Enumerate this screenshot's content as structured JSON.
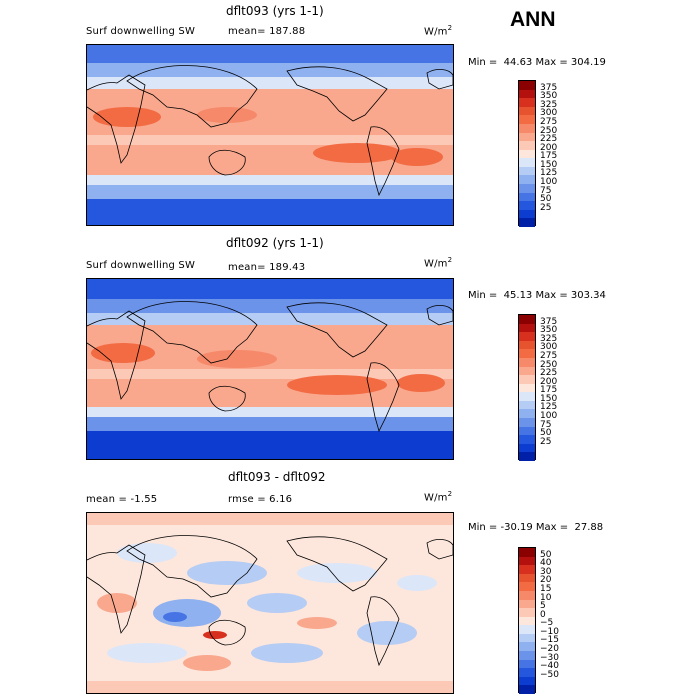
{
  "season": "ANN",
  "panels": [
    {
      "title": "dflt093 (yrs 1-1)",
      "variable": "Surf downwelling SW",
      "stat1": "mean= 187.88",
      "stat2": "",
      "unit": "W/m",
      "unit_sup": "2",
      "minmax": "Min =  44.63 Max = 304.19",
      "type": "field"
    },
    {
      "title": "dflt092 (yrs 1-1)",
      "variable": "Surf downwelling SW",
      "stat1": "mean= 189.43",
      "stat2": "",
      "unit": "W/m",
      "unit_sup": "2",
      "minmax": "Min =  45.13 Max = 303.34",
      "type": "field"
    },
    {
      "title": "dflt093 - dflt092",
      "variable": "",
      "stat1": "mean =  -1.55",
      "stat2": "rmse =   6.16",
      "unit": "W/m",
      "unit_sup": "2",
      "minmax": "Min = -30.19 Max =  27.88",
      "type": "diff"
    }
  ],
  "colorbars": {
    "field": {
      "labels": [
        "375",
        "350",
        "325",
        "300",
        "275",
        "250",
        "225",
        "200",
        "175",
        "150",
        "125",
        "100",
        "75",
        "50",
        "25"
      ],
      "colors": [
        "#8b0000",
        "#b3100e",
        "#d7301f",
        "#e8532f",
        "#f26b43",
        "#f6896a",
        "#f9a88e",
        "#fcc9b7",
        "#fde7dc",
        "#dbe6f9",
        "#b5ccf4",
        "#8fb1ef",
        "#6b93ea",
        "#4674e4",
        "#2457dd",
        "#0d3cd0",
        "#0020a8"
      ]
    },
    "diff": {
      "labels": [
        "50",
        "40",
        "30",
        "20",
        "15",
        "10",
        "5",
        "0",
        "−5",
        "−10",
        "−15",
        "−20",
        "−30",
        "−40",
        "−50"
      ],
      "colors": [
        "#8b0000",
        "#b3100e",
        "#d7301f",
        "#e8532f",
        "#f26b43",
        "#f6896a",
        "#f9a88e",
        "#fcc9b7",
        "#fde7dc",
        "#dbe6f9",
        "#b5ccf4",
        "#8fb1ef",
        "#6b93ea",
        "#4674e4",
        "#2457dd",
        "#0d3cd0",
        "#0020a8"
      ]
    }
  }
}
